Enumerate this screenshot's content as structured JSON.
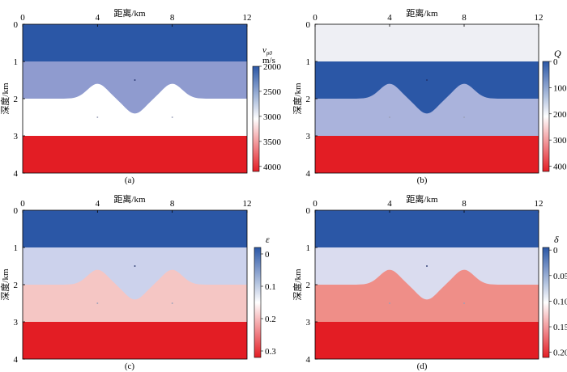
{
  "figure": {
    "x_label": "距离/km",
    "y_label": "深度/km"
  },
  "chart_data": [
    {
      "type": "heatmap",
      "panel_label": "(a)",
      "title": "",
      "xlabel": "距离/km",
      "ylabel": "深度/km",
      "xlim": [
        0,
        12
      ],
      "ylim": [
        0,
        4
      ],
      "x_ticks": [
        "0",
        "4",
        "8",
        "12"
      ],
      "y_ticks": [
        "0",
        "1",
        "2",
        "3",
        "4"
      ],
      "colorbar": {
        "label_main": "v",
        "label_sub": "p0",
        "label_unit": "m/s",
        "range": [
          2000,
          4100
        ],
        "ticks": [
          "2000",
          "2500",
          "3000",
          "3500",
          "4000"
        ],
        "tick_values": [
          2000,
          2500,
          3000,
          3500,
          4000
        ],
        "colors": [
          "#2b57a6",
          "#ffffff",
          "#e31d24"
        ]
      },
      "layers": [
        {
          "name": "top layer",
          "value": 2000,
          "color": "#2b57a6"
        },
        {
          "name": "second layer",
          "value": 2500,
          "color": "#8f9bcf"
        },
        {
          "name": "third layer",
          "value": 3000,
          "color": "#ffffff"
        },
        {
          "name": "bottom layer",
          "value": 4000,
          "color": "#e31d24"
        }
      ]
    },
    {
      "type": "heatmap",
      "panel_label": "(b)",
      "title": "",
      "xlabel": "距离/km",
      "ylabel": "深度/km",
      "xlim": [
        0,
        12
      ],
      "ylim": [
        0,
        4
      ],
      "x_ticks": [
        "0",
        "4",
        "8",
        "12"
      ],
      "y_ticks": [
        "0",
        "1",
        "2",
        "3",
        "4"
      ],
      "colorbar": {
        "label_main": "Q",
        "label_sub": "",
        "label_unit": "",
        "range": [
          0,
          420
        ],
        "ticks": [
          "0",
          "100",
          "200",
          "300",
          "400"
        ],
        "tick_values": [
          0,
          100,
          200,
          300,
          400
        ],
        "colors": [
          "#2b57a6",
          "#ffffff",
          "#e31d24"
        ]
      },
      "layers": [
        {
          "name": "top layer",
          "value": 210,
          "color": "#eeeff4"
        },
        {
          "name": "second layer",
          "value": 30,
          "color": "#2b57a6"
        },
        {
          "name": "third layer",
          "value": 150,
          "color": "#aab3dc"
        },
        {
          "name": "bottom layer",
          "value": 400,
          "color": "#e31d24"
        }
      ]
    },
    {
      "type": "heatmap",
      "panel_label": "(c)",
      "title": "",
      "xlabel": "距离/km",
      "ylabel": "深度/km",
      "xlim": [
        0,
        12
      ],
      "ylim": [
        0,
        4
      ],
      "x_ticks": [
        "0",
        "4",
        "8",
        "12"
      ],
      "y_ticks": [
        "0",
        "1",
        "2",
        "3",
        "4"
      ],
      "colorbar": {
        "label_main": "ε",
        "label_sub": "",
        "label_unit": "",
        "range": [
          -0.02,
          0.32
        ],
        "ticks": [
          "0",
          "0.1",
          "0.2",
          "0.3"
        ],
        "tick_values": [
          0,
          0.1,
          0.2,
          0.3
        ],
        "colors": [
          "#2b57a6",
          "#ffffff",
          "#e31d24"
        ]
      },
      "layers": [
        {
          "name": "top layer",
          "value": 0,
          "color": "#2b57a6"
        },
        {
          "name": "second layer",
          "value": 0.12,
          "color": "#ccd2ec"
        },
        {
          "name": "third layer",
          "value": 0.2,
          "color": "#f5c6c4"
        },
        {
          "name": "bottom layer",
          "value": 0.3,
          "color": "#e31d24"
        }
      ]
    },
    {
      "type": "heatmap",
      "panel_label": "(d)",
      "title": "",
      "xlabel": "距离/km",
      "ylabel": "深度/km",
      "xlim": [
        0,
        12
      ],
      "ylim": [
        0,
        4
      ],
      "x_ticks": [
        "0",
        "4",
        "8",
        "12"
      ],
      "y_ticks": [
        "0",
        "1",
        "2",
        "3",
        "4"
      ],
      "colorbar": {
        "label_main": "δ",
        "label_sub": "",
        "label_unit": "",
        "range": [
          -0.005,
          0.21
        ],
        "ticks": [
          "0",
          "0.05",
          "0.10",
          "0.15",
          "0.20"
        ],
        "tick_values": [
          0,
          0.05,
          0.1,
          0.15,
          0.2
        ],
        "colors": [
          "#2b57a6",
          "#ffffff",
          "#e31d24"
        ]
      },
      "layers": [
        {
          "name": "top layer",
          "value": 0,
          "color": "#2b57a6"
        },
        {
          "name": "second layer",
          "value": 0.08,
          "color": "#dadcef"
        },
        {
          "name": "third layer",
          "value": 0.15,
          "color": "#ef8e88"
        },
        {
          "name": "bottom layer",
          "value": 0.2,
          "color": "#e31d24"
        }
      ]
    }
  ],
  "model": {
    "boundary_1_depth_km": 1,
    "boundary_2_depth_km": 2,
    "boundary_3_depth_km": 3,
    "anticline_1_center_km": 4,
    "anticline_2_center_km": 8,
    "anticline_top_depth_km": 1.6,
    "syncline_center_km": 6,
    "syncline_bottom_depth_km": 2.4,
    "point_1": {
      "x_km": 6,
      "z_km": 1.5
    },
    "point_2": {
      "x_km": 4,
      "z_km": 2.5
    },
    "point_3": {
      "x_km": 8,
      "z_km": 2.5
    }
  }
}
